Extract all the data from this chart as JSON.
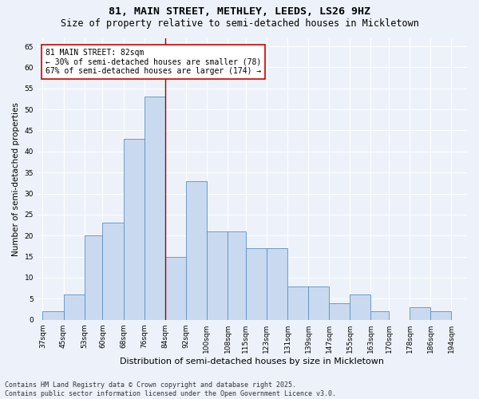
{
  "title": "81, MAIN STREET, METHLEY, LEEDS, LS26 9HZ",
  "subtitle": "Size of property relative to semi-detached houses in Mickletown",
  "xlabel": "Distribution of semi-detached houses by size in Mickletown",
  "ylabel": "Number of semi-detached properties",
  "bin_labels": [
    "37sqm",
    "45sqm",
    "53sqm",
    "60sqm",
    "68sqm",
    "76sqm",
    "84sqm",
    "92sqm",
    "100sqm",
    "108sqm",
    "115sqm",
    "123sqm",
    "131sqm",
    "139sqm",
    "147sqm",
    "155sqm",
    "163sqm",
    "170sqm",
    "178sqm",
    "186sqm",
    "194sqm"
  ],
  "bins": [
    37,
    45,
    53,
    60,
    68,
    76,
    84,
    92,
    100,
    108,
    115,
    123,
    131,
    139,
    147,
    155,
    163,
    170,
    178,
    186,
    194
  ],
  "bar_heights": [
    2,
    6,
    20,
    23,
    43,
    53,
    15,
    33,
    21,
    21,
    17,
    17,
    8,
    8,
    4,
    6,
    2,
    0,
    3,
    2
  ],
  "bar_color": "#c9daf0",
  "bar_edge_color": "#5a8fc0",
  "annotation_text": "81 MAIN STREET: 82sqm\n← 30% of semi-detached houses are smaller (78)\n67% of semi-detached houses are larger (174) →",
  "annotation_box_color": "#ffffff",
  "annotation_box_edge_color": "#cc0000",
  "property_line_x": 84,
  "property_line_color": "#aa0000",
  "ylim": [
    0,
    67
  ],
  "yticks": [
    0,
    5,
    10,
    15,
    20,
    25,
    30,
    35,
    40,
    45,
    50,
    55,
    60,
    65
  ],
  "background_color": "#edf2fa",
  "plot_bg_color": "#edf2fa",
  "footer_text": "Contains HM Land Registry data © Crown copyright and database right 2025.\nContains public sector information licensed under the Open Government Licence v3.0.",
  "title_fontsize": 9.5,
  "subtitle_fontsize": 8.5,
  "xlabel_fontsize": 8,
  "ylabel_fontsize": 7.5,
  "tick_label_fontsize": 6.5,
  "annotation_fontsize": 7,
  "footer_fontsize": 6
}
